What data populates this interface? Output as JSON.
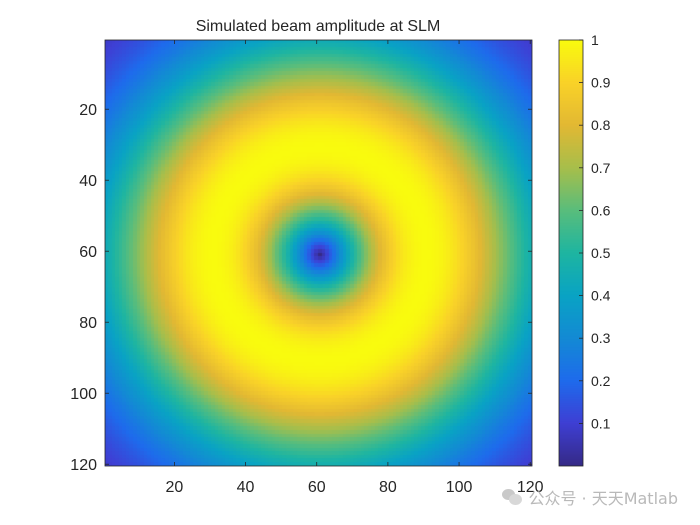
{
  "chart_data": {
    "type": "heatmap",
    "title": "Simulated beam amplitude at SLM",
    "xlabel": "",
    "ylabel": "",
    "grid_size": [
      120,
      120
    ],
    "xlim": [
      0.5,
      120.5
    ],
    "ylim": [
      0.5,
      120.5
    ],
    "x_ticks": [
      20,
      40,
      60,
      80,
      100,
      120
    ],
    "y_ticks": [
      20,
      40,
      60,
      80,
      100,
      120
    ],
    "y_direction": "reversed",
    "field": {
      "model": "donut (Laguerre-Gaussian LG01) amplitude, normalized",
      "center": [
        61,
        61
      ],
      "peak_radius": 30,
      "min_value": 0.0,
      "max_value": 1.0
    },
    "colorbar": {
      "colormap": "parula",
      "limits": [
        0,
        1
      ],
      "tick_labels": [
        "0.1",
        "0.2",
        "0.3",
        "0.4",
        "0.5",
        "0.6",
        "0.7",
        "0.8",
        "0.9",
        "1"
      ],
      "tick_values": [
        0.1,
        0.2,
        0.3,
        0.4,
        0.5,
        0.6,
        0.7,
        0.8,
        0.9,
        1.0
      ]
    }
  },
  "watermark": {
    "icon": "wechat-icon",
    "text": "公众号 · 天天Matlab"
  }
}
